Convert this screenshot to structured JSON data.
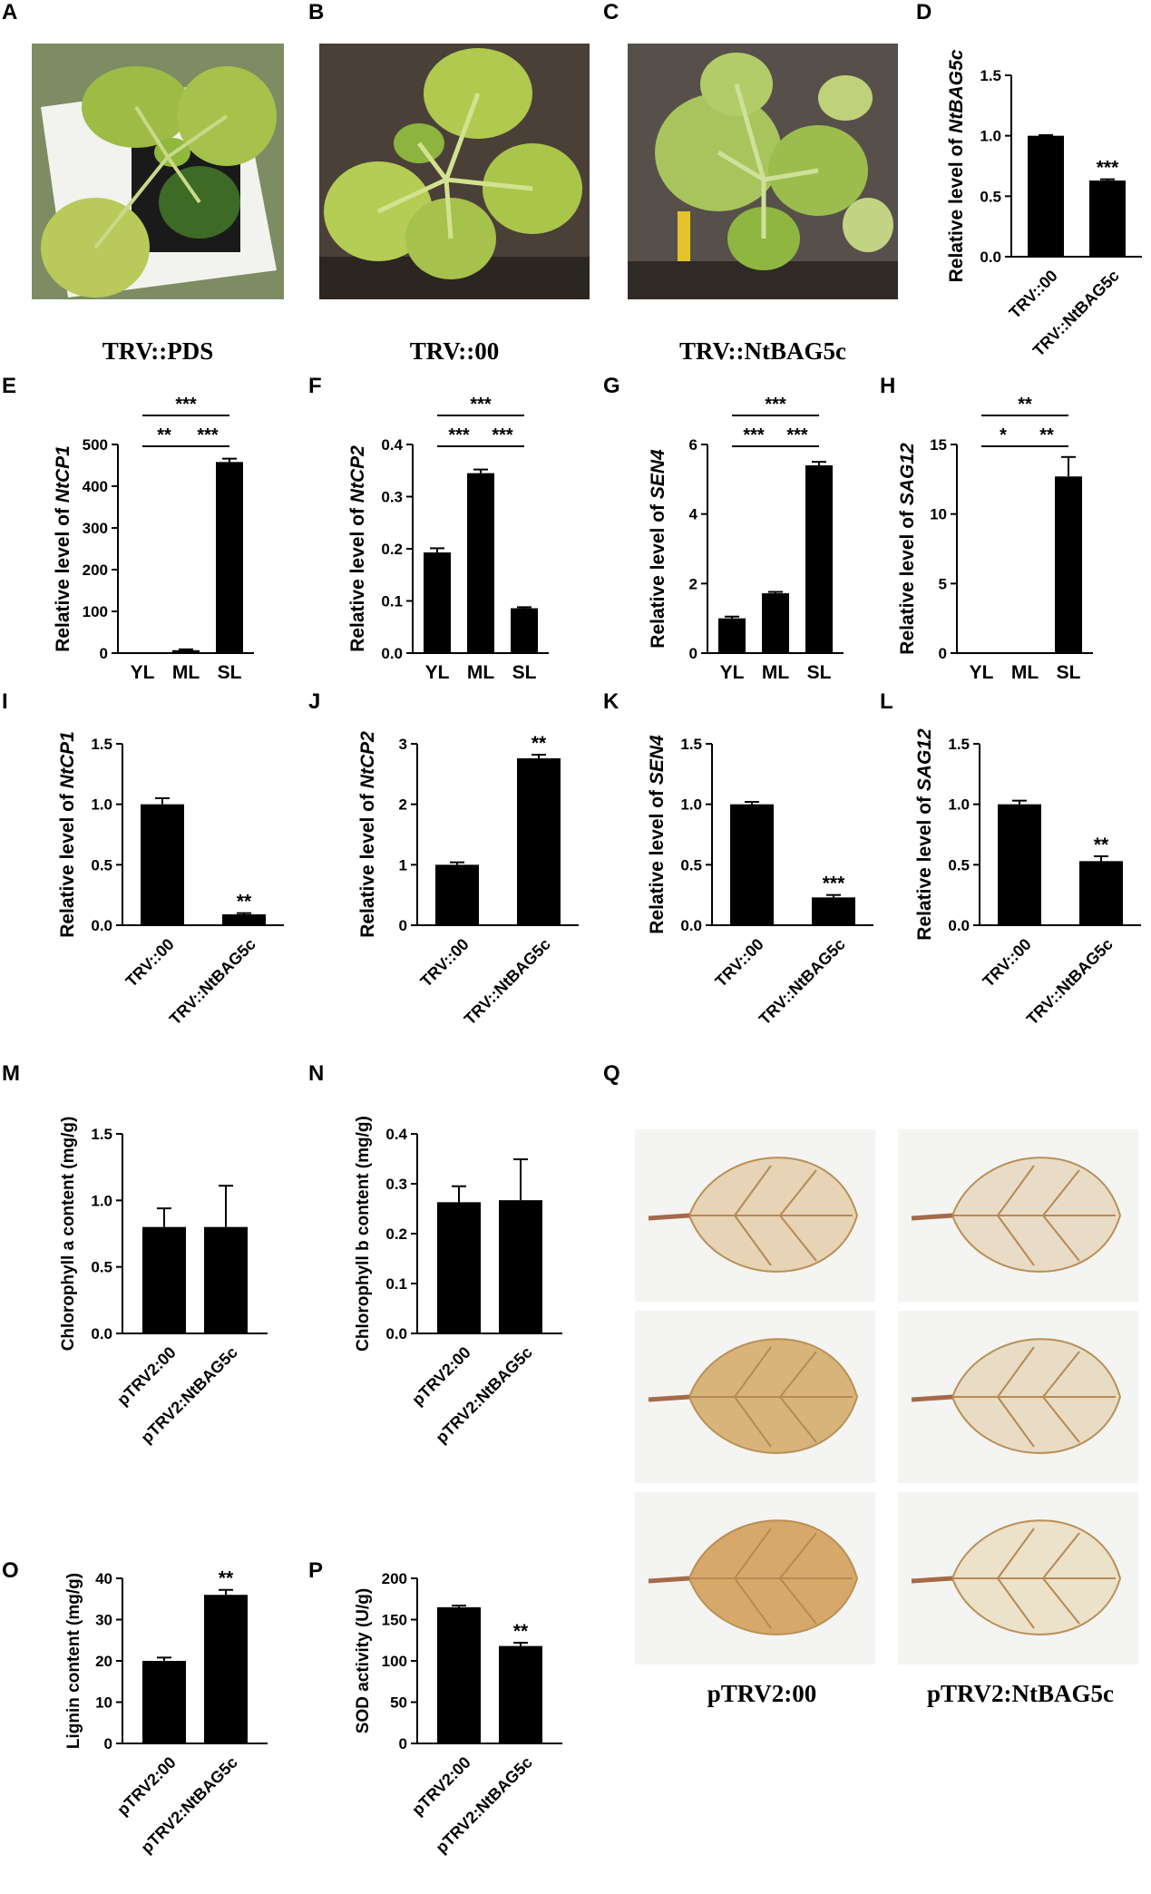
{
  "figure": {
    "panel_letters": [
      "A",
      "B",
      "C",
      "D",
      "E",
      "F",
      "G",
      "H",
      "I",
      "J",
      "K",
      "L",
      "M",
      "N",
      "Q",
      "O",
      "P"
    ],
    "photos": {
      "A": {
        "caption": "TRV::PDS",
        "subject": "tobacco plant photo"
      },
      "B": {
        "caption": "TRV::00",
        "subject": "tobacco plant photo"
      },
      "C": {
        "caption": "TRV::NtBAG5c",
        "subject": "tobacco plant photo"
      }
    },
    "leaf_grid": {
      "captions": [
        "pTRV2:00",
        "pTRV2:NtBAG5c"
      ],
      "rows": 3
    },
    "colors": {
      "bar": "#000000",
      "background": "#ffffff"
    }
  },
  "chart_data": [
    {
      "panel": "D",
      "type": "bar",
      "categories": [
        "TRV::00",
        "TRV::NtBAG5c"
      ],
      "values": [
        1.0,
        0.63
      ],
      "errors": [
        0.005,
        0.01
      ],
      "ylabel_prefix": "Relative level of ",
      "ylabel_gene": "NtBAG5c",
      "ylim": [
        0,
        1.5
      ],
      "yticks": [
        "0.0",
        "0.5",
        "1.0",
        "1.5"
      ],
      "bar_stars": [
        "",
        "***"
      ],
      "brackets": []
    },
    {
      "panel": "E",
      "type": "bar",
      "categories": [
        "YL",
        "ML",
        "SL"
      ],
      "values": [
        1,
        7,
        458
      ],
      "errors": [
        0,
        2,
        8
      ],
      "ylabel_prefix": "Relative level of ",
      "ylabel_gene": "NtCP1",
      "ylim": [
        0,
        500
      ],
      "yticks": [
        "0",
        "100",
        "200",
        "300",
        "400",
        "500"
      ],
      "bar_stars": [
        "",
        "",
        ""
      ],
      "brackets": [
        {
          "from": 0,
          "to": 2,
          "label": "***",
          "level": 2
        },
        {
          "from": 0,
          "to": 1,
          "label": "**",
          "level": 1
        },
        {
          "from": 1,
          "to": 2,
          "label": "***",
          "level": 1
        }
      ]
    },
    {
      "panel": "F",
      "type": "bar",
      "categories": [
        "YL",
        "ML",
        "SL"
      ],
      "values": [
        0.193,
        0.345,
        0.086
      ],
      "errors": [
        0.008,
        0.007,
        0.002
      ],
      "ylabel_prefix": "Relative level of ",
      "ylabel_gene": "NtCP2",
      "ylim": [
        0,
        0.4
      ],
      "yticks": [
        "0.0",
        "0.1",
        "0.2",
        "0.3",
        "0.4"
      ],
      "bar_stars": [
        "",
        "",
        ""
      ],
      "brackets": [
        {
          "from": 0,
          "to": 2,
          "label": "***",
          "level": 2
        },
        {
          "from": 0,
          "to": 1,
          "label": "***",
          "level": 1
        },
        {
          "from": 1,
          "to": 2,
          "label": "***",
          "level": 1
        }
      ]
    },
    {
      "panel": "G",
      "type": "bar",
      "categories": [
        "YL",
        "ML",
        "SL"
      ],
      "values": [
        1.0,
        1.72,
        5.4
      ],
      "errors": [
        0.05,
        0.04,
        0.1
      ],
      "ylabel_prefix": "Relative level of ",
      "ylabel_gene": "SEN4",
      "ylim": [
        0,
        6
      ],
      "yticks": [
        "0",
        "2",
        "4",
        "6"
      ],
      "bar_stars": [
        "",
        "",
        ""
      ],
      "brackets": [
        {
          "from": 0,
          "to": 2,
          "label": "***",
          "level": 2
        },
        {
          "from": 0,
          "to": 1,
          "label": "***",
          "level": 1
        },
        {
          "from": 1,
          "to": 2,
          "label": "***",
          "level": 1
        }
      ]
    },
    {
      "panel": "H",
      "type": "bar",
      "categories": [
        "YL",
        "ML",
        "SL"
      ],
      "values": [
        0.01,
        0.03,
        12.7
      ],
      "errors": [
        0,
        0,
        1.4
      ],
      "ylabel_prefix": "Relative level of ",
      "ylabel_gene": "SAG12",
      "ylim": [
        0,
        15
      ],
      "yticks": [
        "0",
        "5",
        "10",
        "15"
      ],
      "bar_stars": [
        "",
        "",
        ""
      ],
      "brackets": [
        {
          "from": 0,
          "to": 2,
          "label": "**",
          "level": 2
        },
        {
          "from": 0,
          "to": 1,
          "label": "*",
          "level": 1
        },
        {
          "from": 1,
          "to": 2,
          "label": "**",
          "level": 1
        }
      ]
    },
    {
      "panel": "I",
      "type": "bar",
      "categories": [
        "TRV::00",
        "TRV::NtBAG5c"
      ],
      "values": [
        1.0,
        0.09
      ],
      "errors": [
        0.05,
        0.01
      ],
      "ylabel_prefix": "Relative level of ",
      "ylabel_gene": "NtCP1",
      "ylim": [
        0,
        1.5
      ],
      "yticks": [
        "0.0",
        "0.5",
        "1.0",
        "1.5"
      ],
      "bar_stars": [
        "",
        "**"
      ],
      "brackets": []
    },
    {
      "panel": "J",
      "type": "bar",
      "categories": [
        "TRV::00",
        "TRV::NtBAG5c"
      ],
      "values": [
        1.0,
        2.76
      ],
      "errors": [
        0.04,
        0.06
      ],
      "ylabel_prefix": "Relative level of ",
      "ylabel_gene": "NtCP2",
      "ylim": [
        0,
        3
      ],
      "yticks": [
        "0",
        "1",
        "2",
        "3"
      ],
      "bar_stars": [
        "",
        "**"
      ],
      "brackets": []
    },
    {
      "panel": "K",
      "type": "bar",
      "categories": [
        "TRV::00",
        "TRV::NtBAG5c"
      ],
      "values": [
        1.0,
        0.23
      ],
      "errors": [
        0.02,
        0.02
      ],
      "ylabel_prefix": "Relative level of ",
      "ylabel_gene": "SEN4",
      "ylim": [
        0,
        1.5
      ],
      "yticks": [
        "0.0",
        "0.5",
        "1.0",
        "1.5"
      ],
      "bar_stars": [
        "",
        "***"
      ],
      "brackets": []
    },
    {
      "panel": "L",
      "type": "bar",
      "categories": [
        "TRV::00",
        "TRV::NtBAG5c"
      ],
      "values": [
        1.0,
        0.53
      ],
      "errors": [
        0.03,
        0.04
      ],
      "ylabel_prefix": "Relative level of ",
      "ylabel_gene": "SAG12",
      "ylim": [
        0,
        1.5
      ],
      "yticks": [
        "0.0",
        "0.5",
        "1.0",
        "1.5"
      ],
      "bar_stars": [
        "",
        "**"
      ],
      "brackets": []
    },
    {
      "panel": "M",
      "type": "bar",
      "categories": [
        "pTRV2:00",
        "pTRV2:NtBAG5c"
      ],
      "values": [
        0.8,
        0.8
      ],
      "errors": [
        0.14,
        0.31
      ],
      "ylabel_prefix": "Chlorophyll a content (mg/g)",
      "ylabel_gene": "",
      "ylim": [
        0,
        1.5
      ],
      "yticks": [
        "0.0",
        "0.5",
        "1.0",
        "1.5"
      ],
      "bar_stars": [
        "",
        ""
      ],
      "brackets": []
    },
    {
      "panel": "N",
      "type": "bar",
      "categories": [
        "pTRV2:00",
        "pTRV2:NtBAG5c"
      ],
      "values": [
        0.263,
        0.267
      ],
      "errors": [
        0.032,
        0.082
      ],
      "ylabel_prefix": "Chlorophyll b content (mg/g)",
      "ylabel_gene": "",
      "ylim": [
        0,
        0.4
      ],
      "yticks": [
        "0.0",
        "0.1",
        "0.2",
        "0.3",
        "0.4"
      ],
      "bar_stars": [
        "",
        ""
      ],
      "brackets": []
    },
    {
      "panel": "O",
      "type": "bar",
      "categories": [
        "pTRV2:00",
        "pTRV2:NtBAG5c"
      ],
      "values": [
        20,
        36
      ],
      "errors": [
        0.8,
        1.2
      ],
      "ylabel_prefix": "Lignin content (mg/g)",
      "ylabel_gene": "",
      "ylim": [
        0,
        40
      ],
      "yticks": [
        "0",
        "10",
        "20",
        "30",
        "40"
      ],
      "bar_stars": [
        "",
        "**"
      ],
      "brackets": []
    },
    {
      "panel": "P",
      "type": "bar",
      "categories": [
        "pTRV2:00",
        "pTRV2:NtBAG5c"
      ],
      "values": [
        165,
        118
      ],
      "errors": [
        2,
        4
      ],
      "ylabel_prefix": "SOD activity (U/g)",
      "ylabel_gene": "",
      "ylim": [
        0,
        200
      ],
      "yticks": [
        "0",
        "50",
        "100",
        "150",
        "200"
      ],
      "bar_stars": [
        "",
        "**"
      ],
      "brackets": []
    }
  ]
}
